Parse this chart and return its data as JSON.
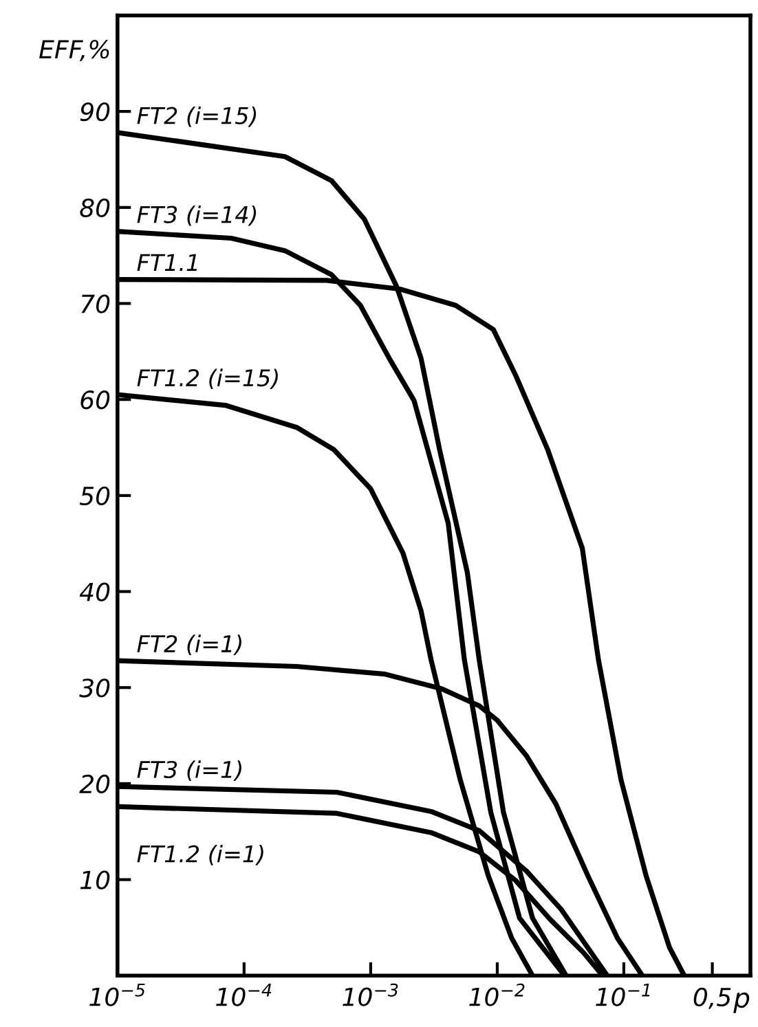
{
  "chart_data": {
    "type": "line",
    "xlabel": "p",
    "ylabel": "EFF,%",
    "log": "x",
    "grid": false,
    "legend": false,
    "marker": "none",
    "line_style": "solid",
    "xlim": [
      1e-05,
      1
    ],
    "ylim": [
      0,
      100
    ],
    "xticks": [
      {
        "value": 1e-05,
        "label": "10$^{−5}$"
      },
      {
        "value": 0.0001,
        "label": "10$^{−4}$"
      },
      {
        "value": 0.001,
        "label": "10$^{−3}$"
      },
      {
        "value": 0.01,
        "label": "10$^{−2}$"
      },
      {
        "value": 0.1,
        "label": "10$^{−1}$"
      },
      {
        "value": 0.5,
        "label": "0,5"
      }
    ],
    "yticks": [
      10,
      20,
      30,
      40,
      50,
      60,
      70,
      80,
      90
    ],
    "series": [
      {
        "name": "FT2 (i=15)",
        "color": "#000000",
        "x": [
          1e-05,
          0.00021,
          0.00049,
          0.00089,
          0.0016,
          0.0025,
          0.0035,
          0.0058,
          0.0072,
          0.0112,
          0.019,
          0.035
        ],
        "values": [
          87.8,
          85.3,
          82.8,
          78.8,
          71.8,
          64.3,
          54.8,
          42,
          32.9,
          17,
          6,
          0
        ]
      },
      {
        "name": "FT3 (i=14)",
        "color": "#000000",
        "x": [
          1e-05,
          7.9e-05,
          0.00021,
          0.00049,
          0.00083,
          0.0014,
          0.0022,
          0.0041,
          0.0055,
          0.0089,
          0.015,
          0.034
        ],
        "values": [
          77.5,
          76.8,
          75.5,
          73,
          69.8,
          64.3,
          59.9,
          47.1,
          32.9,
          17,
          6,
          0
        ]
      },
      {
        "name": "FT1.1",
        "color": "#000000",
        "x": [
          1e-05,
          0.00045,
          0.0017,
          0.0047,
          0.0093,
          0.014,
          0.025,
          0.047,
          0.063,
          0.095,
          0.15,
          0.23,
          0.3
        ],
        "values": [
          72.5,
          72.4,
          71.5,
          69.8,
          67.3,
          62.5,
          54.8,
          44.5,
          32.9,
          20.4,
          10.4,
          2.9,
          0
        ]
      },
      {
        "name": "FT1.2 (i=15)",
        "color": "#000000",
        "x": [
          1e-05,
          7.1e-05,
          0.00026,
          0.00051,
          0.001,
          0.0018,
          0.0025,
          0.003,
          0.0051,
          0.0085,
          0.013,
          0.019
        ],
        "values": [
          60.5,
          59.4,
          57.1,
          54.8,
          50.7,
          44,
          38,
          32.9,
          20.4,
          10.4,
          3.9,
          0
        ]
      },
      {
        "name": "FT2 (i=1)",
        "color": "#000000",
        "x": [
          1e-05,
          0.00026,
          0.0013,
          0.0036,
          0.0072,
          0.01,
          0.017,
          0.029,
          0.052,
          0.089,
          0.14
        ],
        "values": [
          32.8,
          32.2,
          31.4,
          29.9,
          28.1,
          26.6,
          22.9,
          17.9,
          10.4,
          3.9,
          0
        ]
      },
      {
        "name": "FT3 (i=1)",
        "color": "#000000",
        "x": [
          1e-05,
          0.00054,
          0.003,
          0.0072,
          0.017,
          0.032,
          0.052,
          0.074
        ],
        "values": [
          19.7,
          19.1,
          17.1,
          15.1,
          10.9,
          6.9,
          2.9,
          0
        ]
      },
      {
        "name": "FT1.2 (i=1)",
        "color": "#000000",
        "x": [
          1e-05,
          0.00054,
          0.003,
          0.0072,
          0.014,
          0.026,
          0.048,
          0.068
        ],
        "values": [
          17.6,
          16.9,
          14.9,
          12.9,
          9.9,
          5.9,
          2.4,
          0
        ]
      }
    ]
  }
}
